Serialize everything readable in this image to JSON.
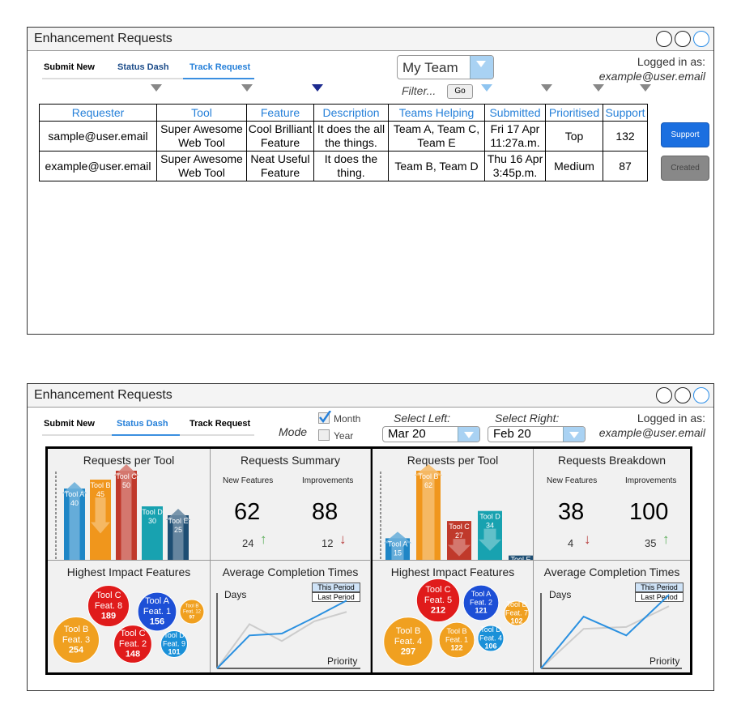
{
  "top": {
    "title": "Enhancement Requests",
    "tabs": [
      "Submit New",
      "Status Dash",
      "Track Request"
    ],
    "team_select": "My Team",
    "filter_placeholder": "Filter...",
    "go_label": "Go",
    "login_label": "Logged in as:",
    "login_user": "example@user.email",
    "columns": [
      "Requester",
      "Tool",
      "Feature",
      "Description",
      "Teams Helping",
      "Submitted",
      "Prioritised",
      "Support"
    ],
    "rows": [
      {
        "requester": "sample@user.email",
        "tool": "Super Awesome Web Tool",
        "feature": "Cool Brilliant Feature",
        "description": "It does the all the things.",
        "teams": "Team A, Team C, Team E",
        "submitted": "Fri 17 Apr 11:27a.m.",
        "prioritised": "Top",
        "support": "132",
        "action": "Support"
      },
      {
        "requester": "example@user.email",
        "tool": "Super Awesome Web Tool",
        "feature": "Neat Useful Feature",
        "description": "It does the thing.",
        "teams": "Team B, Team D",
        "submitted": "Thu 16 Apr 3:45p.m.",
        "prioritised": "Medium",
        "support": "87",
        "action": "Created"
      }
    ]
  },
  "bottom": {
    "title": "Enhancement Requests",
    "tabs": [
      "Submit New",
      "Status Dash",
      "Track Request"
    ],
    "mode_label": "Mode",
    "mode_options": [
      {
        "label": "Month",
        "checked": true
      },
      {
        "label": "Year",
        "checked": false
      }
    ],
    "select_left_label": "Select Left:",
    "select_left_value": "Mar 20",
    "select_right_label": "Select Right:",
    "select_right_value": "Feb 20",
    "login_label": "Logged in as:",
    "login_user": "example@user.email",
    "left": {
      "requests_title": "Requests per Tool",
      "summary_title": "Requests Summary",
      "new_label": "New Features",
      "imp_label": "Improvements",
      "new_value": "62",
      "imp_value": "88",
      "new_delta": "24",
      "imp_delta": "12",
      "impact_title": "Highest Impact Features",
      "times_title": "Average Completion Times",
      "days_label": "Days",
      "priority_label": "Priority",
      "legend_this": "This Period",
      "legend_last": "Last Period"
    },
    "right": {
      "requests_title": "Requests per Tool",
      "summary_title": "Requests Breakdown",
      "new_label": "New Features",
      "imp_label": "Improvements",
      "new_value": "38",
      "imp_value": "100",
      "new_delta": "4",
      "imp_delta": "35",
      "impact_title": "Highest Impact Features",
      "times_title": "Average Completion Times",
      "days_label": "Days",
      "priority_label": "Priority",
      "legend_this": "This Period",
      "legend_last": "Last Period"
    }
  },
  "chart_data": [
    {
      "type": "bar",
      "title": "Requests per Tool",
      "categories": [
        "Tool A",
        "Tool B",
        "Tool C",
        "Tool D",
        "Tool E"
      ],
      "values": [
        40,
        45,
        50,
        30,
        25
      ],
      "colors": [
        "#1f86c6",
        "#f0961c",
        "#c0392b",
        "#18a2b0",
        "#1e4e73"
      ],
      "arrows": [
        "up",
        "down",
        "up",
        "none",
        "up"
      ]
    },
    {
      "type": "bar",
      "title": "Requests per Tool",
      "categories": [
        "Tool A",
        "Tool B",
        "Tool C",
        "Tool D",
        "Tool E"
      ],
      "values": [
        15,
        62,
        27,
        34,
        3
      ],
      "colors": [
        "#1f86c6",
        "#f0961c",
        "#c0392b",
        "#18a2b0",
        "#1e4e73"
      ],
      "arrows": [
        "up",
        "up",
        "down",
        "down",
        "none"
      ]
    },
    {
      "type": "scatter",
      "title": "Highest Impact Features",
      "points": [
        {
          "tool": "Tool C",
          "feature": "Feat. 8",
          "value": 189,
          "color": "#e01b1b"
        },
        {
          "tool": "Tool A",
          "feature": "Feat. 1",
          "value": 156,
          "color": "#1d4fd6"
        },
        {
          "tool": "Tool B",
          "feature": "Feat. 12",
          "value": 97,
          "color": "#f0a020"
        },
        {
          "tool": "Tool B",
          "feature": "Feat. 3",
          "value": 254,
          "color": "#f0a020"
        },
        {
          "tool": "Tool C",
          "feature": "Feat. 2",
          "value": 148,
          "color": "#e01b1b"
        },
        {
          "tool": "Tool D",
          "feature": "Feat. 9",
          "value": 101,
          "color": "#1a90d8"
        }
      ]
    },
    {
      "type": "scatter",
      "title": "Highest Impact Features",
      "points": [
        {
          "tool": "Tool C",
          "feature": "Feat. 5",
          "value": 212,
          "color": "#e01b1b"
        },
        {
          "tool": "Tool A",
          "feature": "Feat. 2",
          "value": 121,
          "color": "#1d4fd6"
        },
        {
          "tool": "Tool B",
          "feature": "Feat. 7",
          "value": 102,
          "color": "#f0a020"
        },
        {
          "tool": "Tool B",
          "feature": "Feat. 4",
          "value": 297,
          "color": "#f0a020"
        },
        {
          "tool": "Tool B",
          "feature": "Feat. 1",
          "value": 122,
          "color": "#f0a020"
        },
        {
          "tool": "Tool D",
          "feature": "Feat. 4",
          "value": 106,
          "color": "#1a90d8"
        }
      ]
    },
    {
      "type": "line",
      "title": "Average Completion Times",
      "xlabel": "Priority",
      "ylabel": "Days",
      "series": [
        {
          "name": "This Period",
          "values": [
            0,
            35,
            37,
            54,
            72
          ],
          "color": "#2a90e0"
        },
        {
          "name": "Last Period",
          "values": [
            0,
            47,
            29,
            50,
            60
          ],
          "color": "#cccccc"
        }
      ]
    },
    {
      "type": "line",
      "title": "Average Completion Times",
      "xlabel": "Priority",
      "ylabel": "Days",
      "series": [
        {
          "name": "This Period",
          "values": [
            0,
            55,
            35,
            78
          ],
          "color": "#2a90e0"
        },
        {
          "name": "Last Period",
          "values": [
            0,
            42,
            44,
            66
          ],
          "color": "#cccccc"
        }
      ]
    }
  ]
}
